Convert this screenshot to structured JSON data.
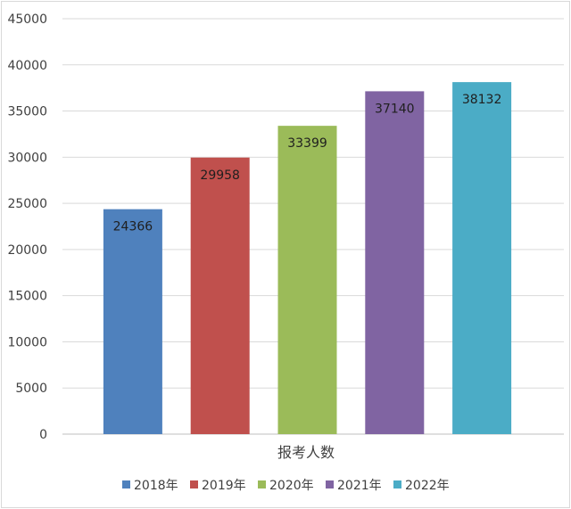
{
  "chart_data": {
    "type": "bar",
    "title": "",
    "xlabel": "报考人数",
    "ylabel": "",
    "ylim": [
      0,
      45000
    ],
    "y_ticks": [
      0,
      5000,
      10000,
      15000,
      20000,
      25000,
      30000,
      35000,
      40000,
      45000
    ],
    "grid": true,
    "legend_position": "bottom",
    "categories": [
      "报考人数"
    ],
    "series": [
      {
        "name": "2018年",
        "values": [
          24366
        ],
        "color": "#4f81bd"
      },
      {
        "name": "2019年",
        "values": [
          29958
        ],
        "color": "#c0504d"
      },
      {
        "name": "2020年",
        "values": [
          33399
        ],
        "color": "#9bbb59"
      },
      {
        "name": "2021年",
        "values": [
          37140
        ],
        "color": "#8064a2"
      },
      {
        "name": "2022年",
        "values": [
          38132
        ],
        "color": "#4bacc6"
      }
    ]
  }
}
